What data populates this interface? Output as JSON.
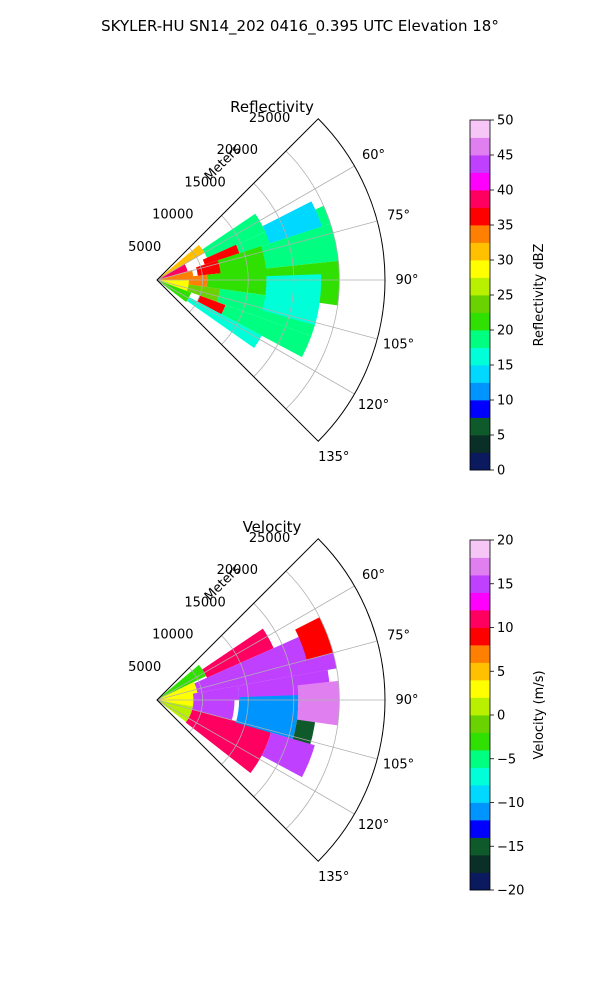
{
  "figure": {
    "suptitle": "SKYLER-HU  SN14_202  0416_0.395 UTC Elevation 18°"
  },
  "chart_data": [
    {
      "type": "heatmap",
      "projection": "polar-sector",
      "title": "Reflectivity",
      "r_axis_label": "Meters",
      "r_ticks": [
        5000,
        10000,
        15000,
        20000,
        25000
      ],
      "r_tick_labels": [
        "5000",
        "10000",
        "15000",
        "20000",
        "25000"
      ],
      "rlim": [
        0,
        25000
      ],
      "theta_range_deg": [
        45,
        135
      ],
      "theta_ticks_deg": [
        60,
        75,
        90,
        105,
        120,
        135
      ],
      "theta_tick_labels": [
        "60°",
        "75°",
        "90°",
        "105°",
        "120°",
        "135°"
      ],
      "grid": true,
      "colorbar": {
        "label": "Reflectivity dBZ",
        "range": [
          0,
          50
        ],
        "ticks": [
          0,
          5,
          10,
          15,
          20,
          25,
          30,
          35,
          40,
          45,
          50
        ],
        "tick_labels": [
          "0",
          "5",
          "10",
          "15",
          "20",
          "25",
          "30",
          "35",
          "40",
          "45",
          "50"
        ],
        "colors": [
          "#0b1a5e",
          "#0a2f26",
          "#0e5a2a",
          "#0000ff",
          "#0094ff",
          "#00d8ff",
          "#00ffd8",
          "#00ff80",
          "#30e000",
          "#6ad200",
          "#b8f000",
          "#ffff00",
          "#ffc000",
          "#ff8000",
          "#ff0000",
          "#ff0060",
          "#ff00ff",
          "#c040ff",
          "#e080f0",
          "#f6c6f6"
        ]
      },
      "cells": [
        {
          "theta_range": [
            50,
            60
          ],
          "r_range": [
            0,
            6000
          ],
          "value": 30
        },
        {
          "theta_range": [
            60,
            74
          ],
          "r_range": [
            0,
            3500
          ],
          "value": 38
        },
        {
          "theta_range": [
            74,
            90
          ],
          "r_range": [
            0,
            4000
          ],
          "value": 33
        },
        {
          "theta_range": [
            90,
            110
          ],
          "r_range": [
            0,
            4000
          ],
          "value": 28
        },
        {
          "theta_range": [
            110,
            127
          ],
          "r_range": [
            0,
            4000
          ],
          "value": 22
        },
        {
          "theta_range": [
            56,
            66
          ],
          "r_range": [
            6000,
            13000
          ],
          "value": 18
        },
        {
          "theta_range": [
            66,
            72
          ],
          "r_range": [
            5500,
            9500
          ],
          "value": 36
        },
        {
          "theta_range": [
            72,
            84
          ],
          "r_range": [
            4500,
            9000
          ],
          "value": 36
        },
        {
          "theta_range": [
            84,
            98
          ],
          "r_range": [
            3500,
            5500
          ],
          "value": 34
        },
        {
          "theta_range": [
            98,
            110
          ],
          "r_range": [
            3500,
            7000
          ],
          "value": 24
        },
        {
          "theta_range": [
            110,
            118
          ],
          "r_range": [
            5000,
            8000
          ],
          "value": 36
        },
        {
          "theta_range": [
            66,
            72
          ],
          "r_range": [
            9500,
            20000
          ],
          "value": 18
        },
        {
          "theta_range": [
            72,
            84
          ],
          "r_range": [
            9000,
            20000
          ],
          "value": 19
        },
        {
          "theta_range": [
            84,
            98
          ],
          "r_range": [
            5500,
            20000
          ],
          "value": 20
        },
        {
          "theta_range": [
            98,
            110
          ],
          "r_range": [
            7000,
            18000
          ],
          "value": 19
        },
        {
          "theta_range": [
            110,
            118
          ],
          "r_range": [
            8000,
            18000
          ],
          "value": 18
        },
        {
          "theta_range": [
            118,
            125
          ],
          "r_range": [
            4000,
            13000
          ],
          "value": 17
        },
        {
          "theta_range": [
            72,
            90
          ],
          "r_range": [
            7000,
            12000
          ],
          "value": 22
        },
        {
          "theta_range": [
            88,
            106
          ],
          "r_range": [
            12000,
            18000
          ],
          "value": 15
        },
        {
          "theta_range": [
            63,
            72
          ],
          "r_range": [
            13000,
            19000
          ],
          "value": 14
        }
      ]
    },
    {
      "type": "heatmap",
      "projection": "polar-sector",
      "title": "Velocity",
      "r_axis_label": "Meters",
      "r_ticks": [
        5000,
        10000,
        15000,
        20000,
        25000
      ],
      "r_tick_labels": [
        "5000",
        "10000",
        "15000",
        "20000",
        "25000"
      ],
      "rlim": [
        0,
        25000
      ],
      "theta_range_deg": [
        45,
        135
      ],
      "theta_ticks_deg": [
        60,
        75,
        90,
        105,
        120,
        135
      ],
      "theta_tick_labels": [
        "60°",
        "75°",
        "90°",
        "105°",
        "120°",
        "135°"
      ],
      "grid": true,
      "colorbar": {
        "label": "Velocity (m/s)",
        "range": [
          -20,
          20
        ],
        "ticks": [
          -20,
          -15,
          -10,
          -5,
          0,
          5,
          10,
          15,
          20
        ],
        "tick_labels": [
          "−20",
          "−15",
          "−10",
          "−5",
          "0",
          "5",
          "10",
          "15",
          "20"
        ],
        "colors": [
          "#0b1a5e",
          "#0a2f26",
          "#0e5a2a",
          "#0000ff",
          "#0094ff",
          "#00d8ff",
          "#00ffd8",
          "#00ff80",
          "#30e000",
          "#6ad200",
          "#b8f000",
          "#ffff00",
          "#ffc000",
          "#ff8000",
          "#ff0000",
          "#ff0060",
          "#ff00ff",
          "#c040ff",
          "#e080f0",
          "#f6c6f6"
        ]
      },
      "cells": [
        {
          "theta_range": [
            50,
            64
          ],
          "r_range": [
            0,
            6000
          ],
          "value": -4
        },
        {
          "theta_range": [
            64,
            80
          ],
          "r_range": [
            0,
            4500
          ],
          "value": 2
        },
        {
          "theta_range": [
            80,
            100
          ],
          "r_range": [
            0,
            4000
          ],
          "value": 3
        },
        {
          "theta_range": [
            100,
            127
          ],
          "r_range": [
            0,
            4000
          ],
          "value": 0
        },
        {
          "theta_range": [
            56,
            66
          ],
          "r_range": [
            6000,
            14000
          ],
          "value": 11
        },
        {
          "theta_range": [
            66,
            80
          ],
          "r_range": [
            4500,
            20000
          ],
          "value": 14
        },
        {
          "theta_range": [
            80,
            90
          ],
          "r_range": [
            4000,
            9000
          ],
          "value": 14
        },
        {
          "theta_range": [
            90,
            105
          ],
          "r_range": [
            4000,
            8500
          ],
          "value": 15
        },
        {
          "theta_range": [
            105,
            128
          ],
          "r_range": [
            4000,
            13000
          ],
          "value": 10
        },
        {
          "theta_range": [
            84,
            106
          ],
          "r_range": [
            9000,
            15500
          ],
          "value": -12
        },
        {
          "theta_range": [
            95,
            112
          ],
          "r_range": [
            15500,
            17500
          ],
          "value": -15
        },
        {
          "theta_range": [
            80,
            88
          ],
          "r_range": [
            9000,
            19000
          ],
          "value": 14
        },
        {
          "theta_range": [
            106,
            118
          ],
          "r_range": [
            13000,
            18000
          ],
          "value": 15
        },
        {
          "theta_range": [
            63,
            75
          ],
          "r_range": [
            17000,
            20000
          ],
          "value": 9
        },
        {
          "theta_range": [
            84,
            98
          ],
          "r_range": [
            15500,
            20000
          ],
          "value": 16
        }
      ]
    }
  ]
}
